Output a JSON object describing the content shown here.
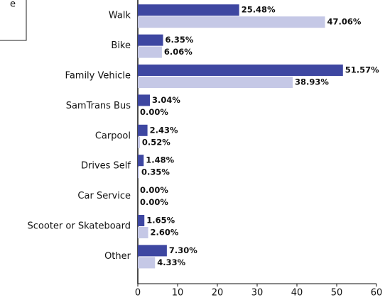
{
  "chart_data": {
    "type": "hbar",
    "legend_text": "e",
    "categories": [
      "Walk",
      "Bike",
      "Family Vehicle",
      "SamTrans Bus",
      "Carpool",
      "Drives Self",
      "Car Service",
      "Scooter or Skateboard",
      "Other"
    ],
    "series": [
      {
        "color": "#3e47a1",
        "label_color": "#3e47a1",
        "values": [
          25.48,
          6.35,
          51.57,
          3.04,
          2.43,
          1.48,
          0,
          1.65,
          7.3
        ],
        "value_labels": [
          "25.48%",
          "6.35%",
          "51.57%",
          "3.04%",
          "2.43%",
          "1.48%",
          "0.00%",
          "1.65%",
          "7.30%"
        ]
      },
      {
        "color": "#c5c8e6",
        "label_color": "#a3a8d6",
        "values": [
          47.06,
          6.06,
          38.93,
          0,
          0.52,
          0.35,
          0,
          2.6,
          4.33
        ],
        "value_labels": [
          "47.06%",
          "6.06%",
          "38.93%",
          "0.00%",
          "0.52%",
          "0.35%",
          "0.00%",
          "2.60%",
          "4.33%"
        ]
      }
    ],
    "xlim": [
      0,
      60
    ],
    "xticks": [
      0,
      10,
      20,
      30,
      40,
      50,
      60
    ]
  }
}
